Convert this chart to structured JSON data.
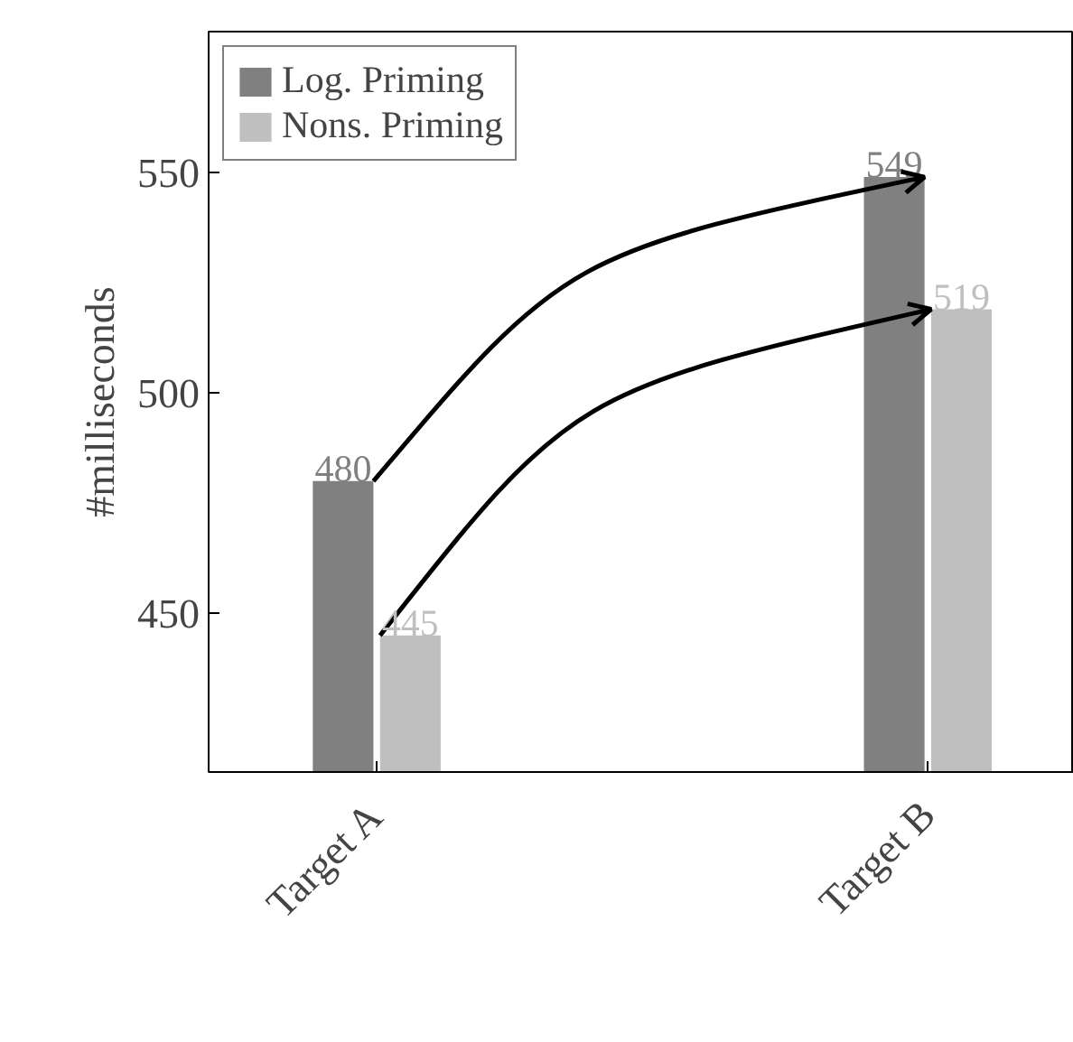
{
  "chart_data": {
    "type": "bar",
    "ylabel": "#milliseconds",
    "categories": [
      "Target A",
      "Target B"
    ],
    "series": [
      {
        "name": "Log. Priming",
        "color": "#808080",
        "values": [
          480,
          549
        ]
      },
      {
        "name": "Nons. Priming",
        "color": "#bfbfbf",
        "values": [
          445,
          519
        ]
      }
    ],
    "ylim": [
      414,
      582
    ],
    "yticks": [
      450,
      500,
      550
    ],
    "data_labels": true,
    "legend": "top left",
    "grid": false
  }
}
